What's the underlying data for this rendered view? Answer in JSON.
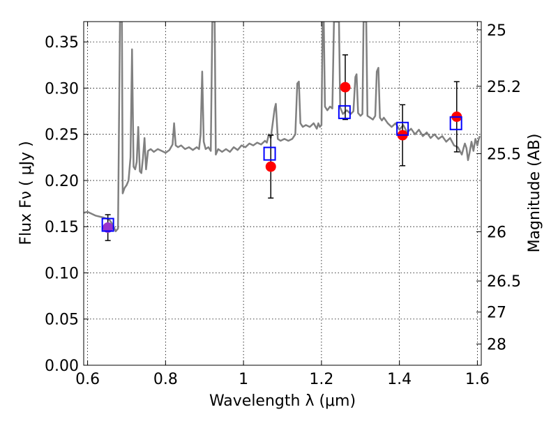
{
  "chart_data": {
    "type": "scatter",
    "title": "",
    "xlabel": "Wavelength  λ (μm)",
    "ylabel": "Flux  Fν  ( μJy )",
    "ylabel_right": "Magnitude (AB)",
    "xlim": [
      0.59,
      1.61
    ],
    "ylim": [
      0.0,
      0.372
    ],
    "grid": true,
    "x_ticks": [
      0.6,
      0.8,
      1.0,
      1.2,
      1.4,
      1.6
    ],
    "x_tick_labels": [
      "0.6",
      "0.8",
      "1",
      "1.2",
      "1.4",
      "1.6"
    ],
    "y_ticks": [
      0.0,
      0.05,
      0.1,
      0.15,
      0.2,
      0.25,
      0.3,
      0.35
    ],
    "y_tick_labels": [
      "0.00",
      "0.05",
      "0.10",
      "0.15",
      "0.20",
      "0.25",
      "0.30",
      "0.35"
    ],
    "right_ticks": [
      {
        "mag": 25.0,
        "label": "25"
      },
      {
        "mag": 25.2,
        "label": "25.2"
      },
      {
        "mag": 25.5,
        "label": "25.5"
      },
      {
        "mag": 26.0,
        "label": "26"
      },
      {
        "mag": 26.5,
        "label": "26.5"
      },
      {
        "mag": 27.0,
        "label": "27"
      },
      {
        "mag": 28.0,
        "label": "28"
      }
    ],
    "series": [
      {
        "kind": "spectrum",
        "color": "#808080",
        "points": [
          [
            0.59,
            0.165
          ],
          [
            0.6,
            0.166
          ],
          [
            0.62,
            0.162
          ],
          [
            0.64,
            0.16
          ],
          [
            0.655,
            0.158
          ],
          [
            0.665,
            0.152
          ],
          [
            0.672,
            0.145
          ],
          [
            0.678,
            0.148
          ],
          [
            0.683,
            0.372
          ],
          [
            0.688,
            0.372
          ],
          [
            0.69,
            0.186
          ],
          [
            0.695,
            0.192
          ],
          [
            0.7,
            0.195
          ],
          [
            0.705,
            0.2
          ],
          [
            0.71,
            0.225
          ],
          [
            0.714,
            0.342
          ],
          [
            0.718,
            0.215
          ],
          [
            0.722,
            0.212
          ],
          [
            0.726,
            0.22
          ],
          [
            0.73,
            0.258
          ],
          [
            0.734,
            0.21
          ],
          [
            0.738,
            0.208
          ],
          [
            0.742,
            0.224
          ],
          [
            0.746,
            0.246
          ],
          [
            0.75,
            0.212
          ],
          [
            0.755,
            0.232
          ],
          [
            0.762,
            0.234
          ],
          [
            0.77,
            0.231
          ],
          [
            0.78,
            0.234
          ],
          [
            0.79,
            0.232
          ],
          [
            0.8,
            0.23
          ],
          [
            0.81,
            0.233
          ],
          [
            0.818,
            0.239
          ],
          [
            0.822,
            0.262
          ],
          [
            0.826,
            0.238
          ],
          [
            0.832,
            0.236
          ],
          [
            0.84,
            0.238
          ],
          [
            0.85,
            0.234
          ],
          [
            0.86,
            0.236
          ],
          [
            0.87,
            0.233
          ],
          [
            0.88,
            0.236
          ],
          [
            0.886,
            0.234
          ],
          [
            0.89,
            0.25
          ],
          [
            0.894,
            0.318
          ],
          [
            0.898,
            0.242
          ],
          [
            0.903,
            0.234
          ],
          [
            0.91,
            0.236
          ],
          [
            0.916,
            0.232
          ],
          [
            0.92,
            0.372
          ],
          [
            0.926,
            0.372
          ],
          [
            0.929,
            0.228
          ],
          [
            0.935,
            0.234
          ],
          [
            0.945,
            0.231
          ],
          [
            0.955,
            0.234
          ],
          [
            0.965,
            0.231
          ],
          [
            0.975,
            0.236
          ],
          [
            0.985,
            0.233
          ],
          [
            0.995,
            0.238
          ],
          [
            1.005,
            0.236
          ],
          [
            1.015,
            0.24
          ],
          [
            1.025,
            0.238
          ],
          [
            1.035,
            0.241
          ],
          [
            1.045,
            0.239
          ],
          [
            1.055,
            0.243
          ],
          [
            1.06,
            0.241
          ],
          [
            1.065,
            0.25
          ],
          [
            1.07,
            0.246
          ],
          [
            1.075,
            0.262
          ],
          [
            1.08,
            0.278
          ],
          [
            1.083,
            0.283
          ],
          [
            1.088,
            0.245
          ],
          [
            1.095,
            0.243
          ],
          [
            1.105,
            0.245
          ],
          [
            1.115,
            0.243
          ],
          [
            1.125,
            0.245
          ],
          [
            1.133,
            0.25
          ],
          [
            1.138,
            0.305
          ],
          [
            1.142,
            0.307
          ],
          [
            1.146,
            0.262
          ],
          [
            1.152,
            0.258
          ],
          [
            1.16,
            0.26
          ],
          [
            1.17,
            0.258
          ],
          [
            1.18,
            0.262
          ],
          [
            1.188,
            0.256
          ],
          [
            1.192,
            0.262
          ],
          [
            1.196,
            0.258
          ],
          [
            1.2,
            0.26
          ],
          [
            1.203,
            0.372
          ],
          [
            1.206,
            0.372
          ],
          [
            1.209,
            0.28
          ],
          [
            1.215,
            0.276
          ],
          [
            1.222,
            0.28
          ],
          [
            1.228,
            0.278
          ],
          [
            1.232,
            0.372
          ],
          [
            1.245,
            0.372
          ],
          [
            1.248,
            0.279
          ],
          [
            1.255,
            0.272
          ],
          [
            1.265,
            0.276
          ],
          [
            1.275,
            0.272
          ],
          [
            1.282,
            0.275
          ],
          [
            1.287,
            0.312
          ],
          [
            1.29,
            0.315
          ],
          [
            1.294,
            0.273
          ],
          [
            1.3,
            0.27
          ],
          [
            1.305,
            0.272
          ],
          [
            1.308,
            0.372
          ],
          [
            1.315,
            0.372
          ],
          [
            1.318,
            0.27
          ],
          [
            1.325,
            0.268
          ],
          [
            1.332,
            0.266
          ],
          [
            1.338,
            0.27
          ],
          [
            1.342,
            0.318
          ],
          [
            1.346,
            0.322
          ],
          [
            1.35,
            0.268
          ],
          [
            1.355,
            0.265
          ],
          [
            1.36,
            0.268
          ],
          [
            1.37,
            0.262
          ],
          [
            1.38,
            0.258
          ],
          [
            1.39,
            0.262
          ],
          [
            1.4,
            0.255
          ],
          [
            1.41,
            0.26
          ],
          [
            1.42,
            0.252
          ],
          [
            1.43,
            0.256
          ],
          [
            1.44,
            0.25
          ],
          [
            1.45,
            0.255
          ],
          [
            1.46,
            0.248
          ],
          [
            1.47,
            0.252
          ],
          [
            1.48,
            0.246
          ],
          [
            1.49,
            0.25
          ],
          [
            1.5,
            0.245
          ],
          [
            1.51,
            0.248
          ],
          [
            1.52,
            0.242
          ],
          [
            1.53,
            0.246
          ],
          [
            1.54,
            0.238
          ],
          [
            1.55,
            0.236
          ],
          [
            1.555,
            0.232
          ],
          [
            1.56,
            0.228
          ],
          [
            1.565,
            0.236
          ],
          [
            1.568,
            0.24
          ],
          [
            1.572,
            0.235
          ],
          [
            1.576,
            0.222
          ],
          [
            1.58,
            0.23
          ],
          [
            1.585,
            0.242
          ],
          [
            1.59,
            0.232
          ],
          [
            1.595,
            0.245
          ],
          [
            1.6,
            0.238
          ],
          [
            1.603,
            0.244
          ],
          [
            1.606,
            0.248
          ]
        ]
      },
      {
        "kind": "model-photometry",
        "marker": "open-square",
        "color": "#0000ff",
        "points": [
          [
            0.652,
            0.152
          ],
          [
            1.067,
            0.229
          ],
          [
            1.259,
            0.274
          ],
          [
            1.408,
            0.256
          ],
          [
            1.545,
            0.262
          ]
        ]
      },
      {
        "kind": "observed-photometry",
        "marker": "filled-circle",
        "color": "#ff0000",
        "first_point_color": "#9933cc",
        "points": [
          [
            0.652,
            0.149
          ],
          [
            1.07,
            0.215
          ],
          [
            1.261,
            0.301
          ],
          [
            1.408,
            0.249
          ],
          [
            1.547,
            0.269
          ]
        ],
        "errors": [
          0.014,
          0.034,
          0.035,
          0.033,
          0.038
        ]
      }
    ]
  }
}
